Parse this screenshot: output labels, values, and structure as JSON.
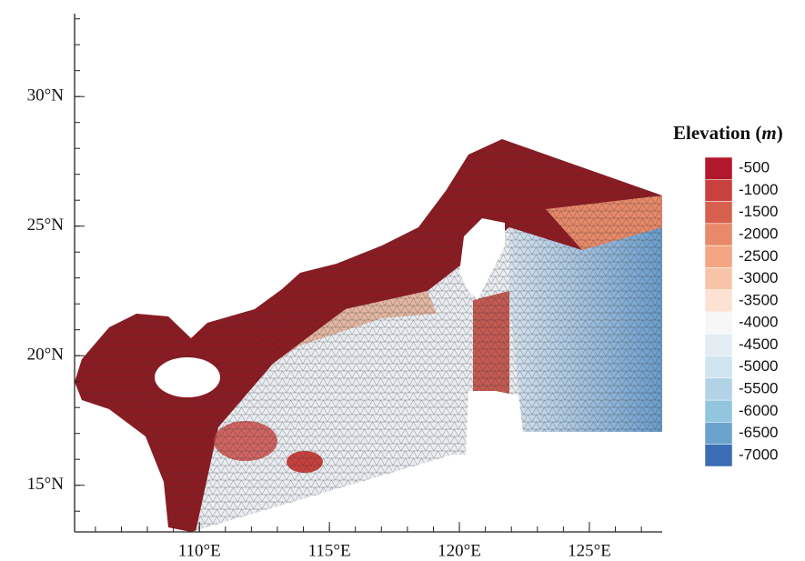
{
  "map": {
    "xlim": [
      105.2,
      127.8
    ],
    "ylim": [
      13.2,
      33.2
    ],
    "xticks": [
      {
        "value": 110,
        "label": "110°E"
      },
      {
        "value": 115,
        "label": "115°E"
      },
      {
        "value": 120,
        "label": "120°E"
      },
      {
        "value": 125,
        "label": "125°E"
      }
    ],
    "yticks": [
      {
        "value": 15,
        "label": "15°N"
      },
      {
        "value": 20,
        "label": "20°N"
      },
      {
        "value": 25,
        "label": "25°N"
      },
      {
        "value": 30,
        "label": "30°N"
      }
    ],
    "legend": {
      "title": [
        "Elevation (",
        "m",
        ")"
      ],
      "levels": [
        -500,
        -1000,
        -1500,
        -2000,
        -2500,
        -3000,
        -3500,
        -4000,
        -4500,
        -5000,
        -5500,
        -6000,
        -6500,
        -7000
      ],
      "colors": [
        "#b2182b",
        "#c8413e",
        "#d6604d",
        "#e8896a",
        "#f4a582",
        "#f7c4a8",
        "#fbe2d3",
        "#f7f7f7",
        "#e3ecf2",
        "#d1e5f0",
        "#b2d2e6",
        "#92c5de",
        "#6aa3cd",
        "#3a6db3"
      ]
    }
  }
}
